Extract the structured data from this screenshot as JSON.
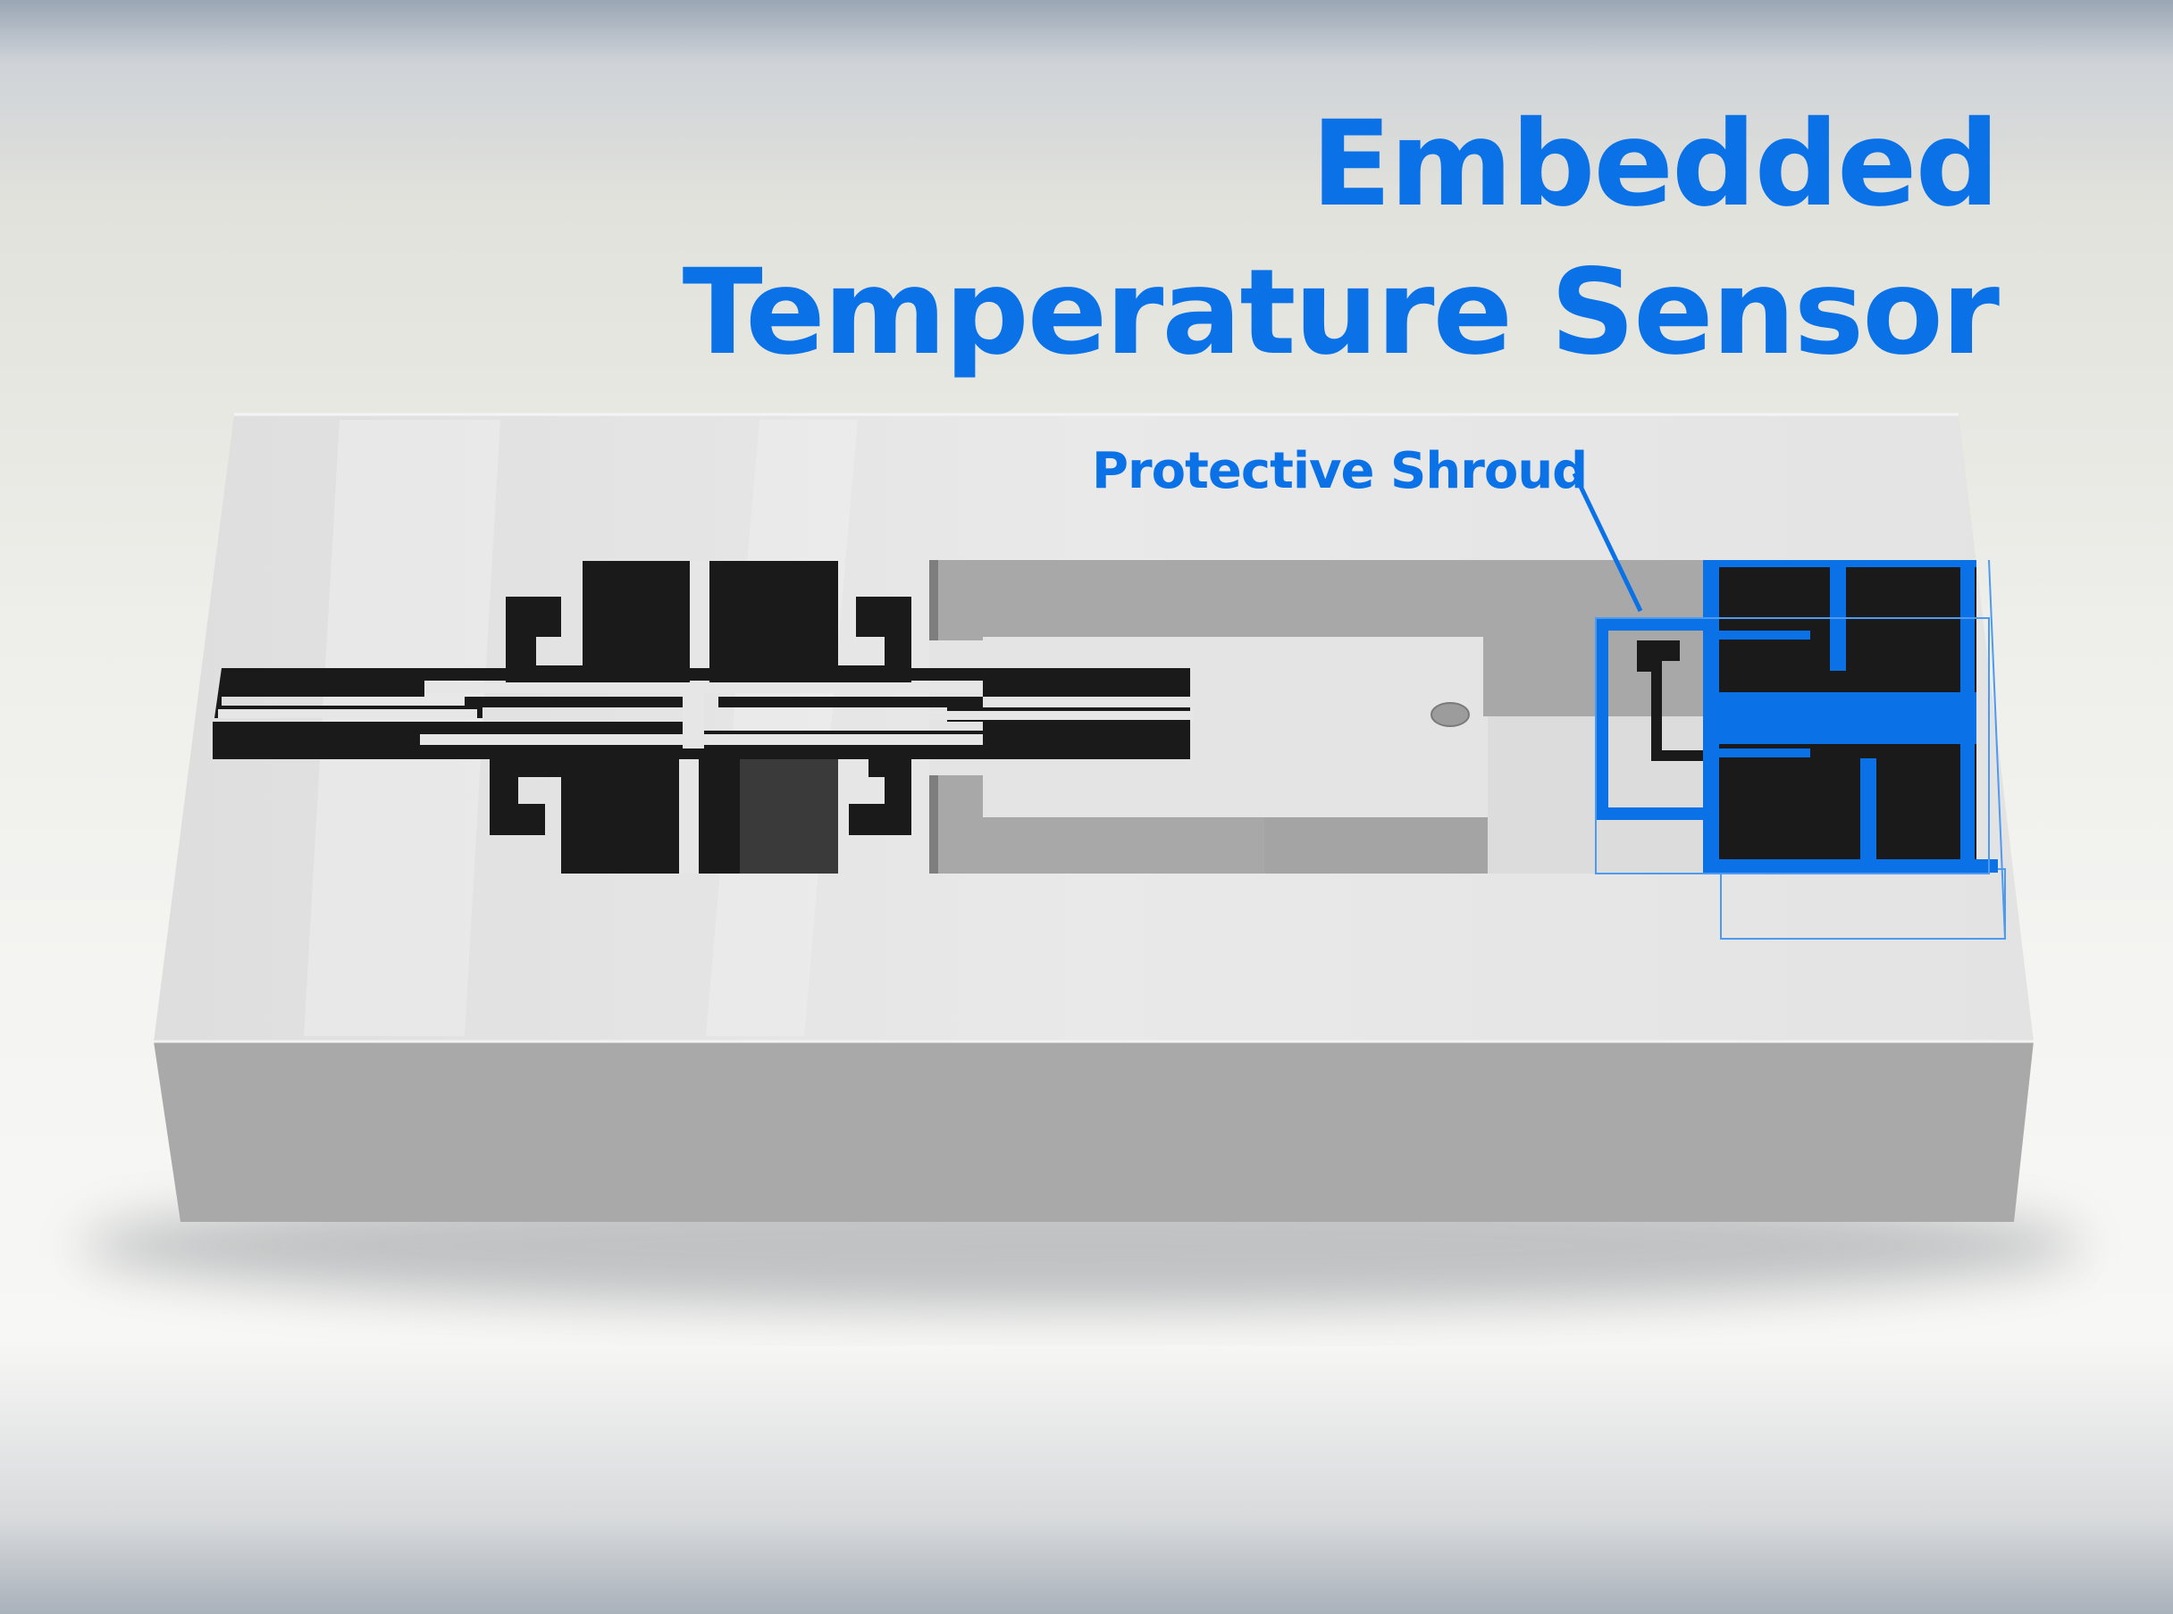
{
  "title": {
    "line1": "Embedded",
    "line2": "Temperature Sensor"
  },
  "callout": {
    "label": "Protective Shroud"
  },
  "colors": {
    "accent": "#0a72e6",
    "circuit": "#1a1a1a",
    "board_top": "#e6e6e6",
    "board_side": "#a9a9a9",
    "pocket": "#a8a8a8"
  }
}
